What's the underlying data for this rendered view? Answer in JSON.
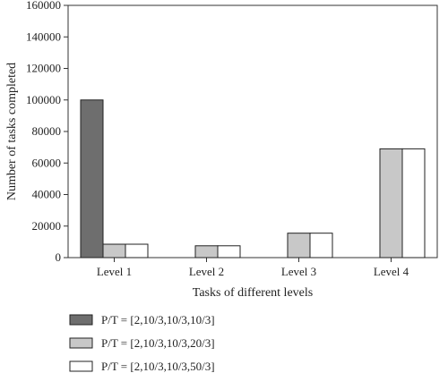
{
  "chart_data": {
    "type": "bar",
    "xlabel": "Tasks of different levels",
    "ylabel": "Number of tasks completed",
    "ylim": [
      0,
      160000
    ],
    "yticks": [
      0,
      20000,
      40000,
      60000,
      80000,
      100000,
      120000,
      140000,
      160000
    ],
    "categories": [
      "Level 1",
      "Level 2",
      "Level 3",
      "Level 4"
    ],
    "grid": false,
    "legend_position": "bottom-left",
    "series": [
      {
        "name": "P/T = [2,10/3,10/3,10/3]",
        "color": "#6e6e6e",
        "values": [
          100000,
          null,
          null,
          null
        ]
      },
      {
        "name": "P/T = [2,10/3,10/3,20/3]",
        "color": "#c8c8c8",
        "values": [
          8500,
          7500,
          15500,
          69000
        ]
      },
      {
        "name": "P/T = [2,10/3,10/3,50/3]",
        "color": "#ffffff",
        "values": [
          8500,
          7500,
          15500,
          69000
        ]
      }
    ]
  }
}
